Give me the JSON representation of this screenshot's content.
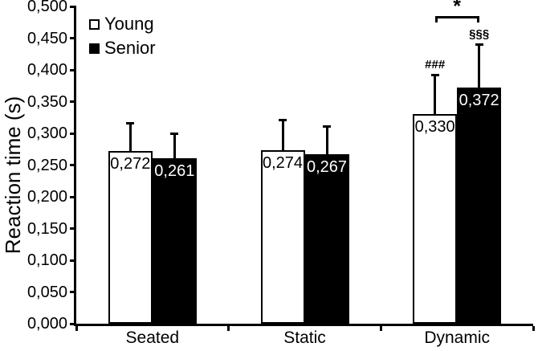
{
  "chart_data": {
    "type": "bar",
    "title": "",
    "xlabel": "",
    "ylabel": "Reaction time (s)",
    "categories": [
      "Seated",
      "Static",
      "Dynamic"
    ],
    "series": [
      {
        "name": "Young",
        "swatch": "#ffffff",
        "label_color": "#000000",
        "values": [
          0.272,
          0.274,
          0.33
        ],
        "value_labels": [
          "0,272",
          "0,274",
          "0,330"
        ],
        "errors_plus": [
          0.045,
          0.048,
          0.063
        ]
      },
      {
        "name": "Senior",
        "swatch": "#000000",
        "label_color": "#ffffff",
        "values": [
          0.261,
          0.267,
          0.372
        ],
        "value_labels": [
          "0,261",
          "0,267",
          "0,372"
        ],
        "errors_plus": [
          0.039,
          0.044,
          0.068
        ]
      }
    ],
    "ylim": [
      0,
      0.5
    ],
    "ytick_step": 0.05,
    "ytick_labels": [
      "0,000",
      "0,050",
      "0,100",
      "0,150",
      "0,200",
      "0,250",
      "0,300",
      "0,350",
      "0,400",
      "0,450",
      "0,500"
    ],
    "decimal_separator": ",",
    "grid": false,
    "legend_position": "top-left",
    "error_bars": "upper-only",
    "annotations": [
      {
        "type": "text",
        "text": "###",
        "category": "Dynamic",
        "series": "Young"
      },
      {
        "type": "text",
        "text": "§§§",
        "category": "Dynamic",
        "series": "Senior"
      },
      {
        "type": "bracket",
        "text": "*",
        "category": "Dynamic",
        "between": [
          "Young",
          "Senior"
        ]
      }
    ]
  },
  "colors": {
    "axis": "#000000",
    "bar_stroke": "#000000",
    "background": "#ffffff"
  }
}
